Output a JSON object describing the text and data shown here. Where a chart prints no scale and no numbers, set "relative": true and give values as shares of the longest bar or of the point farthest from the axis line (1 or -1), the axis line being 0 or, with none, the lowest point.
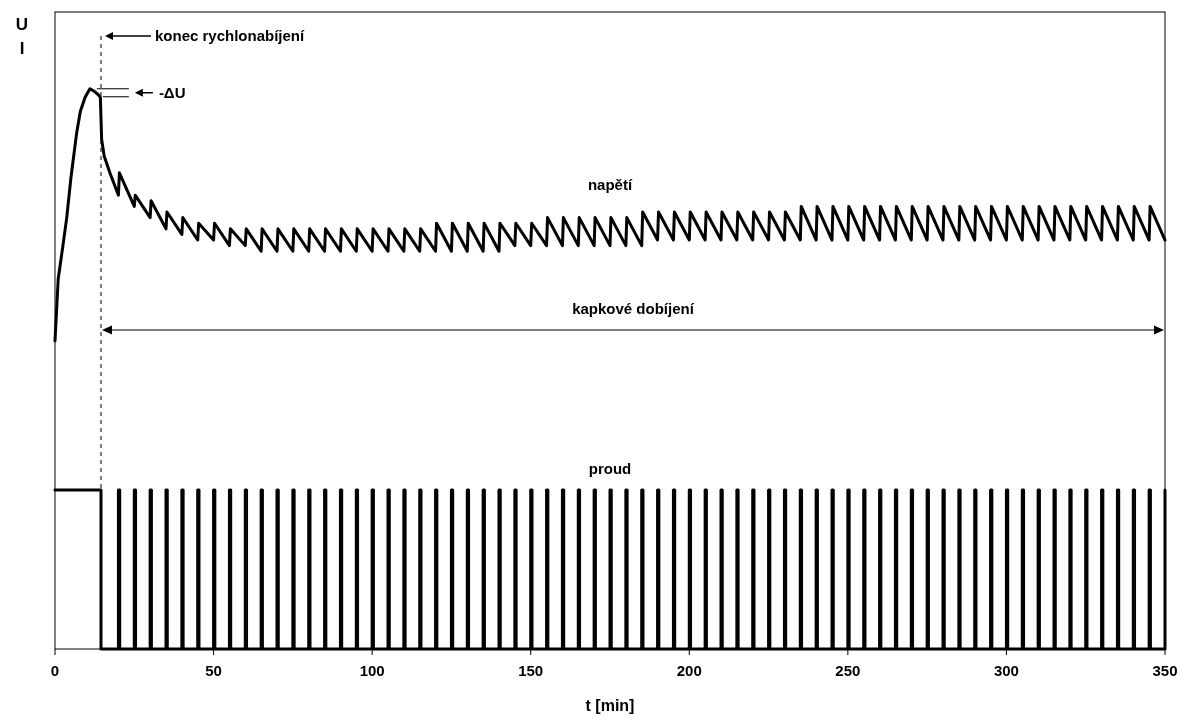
{
  "chart_data": {
    "type": "line",
    "relative": true,
    "xlabel": "t [min]",
    "ylabel": "U I",
    "xlim": [
      0,
      350
    ],
    "xticks": [
      0,
      50,
      100,
      150,
      200,
      250,
      300,
      350
    ],
    "grid": false,
    "ref_lines": [
      {
        "axis": "x",
        "value": 14.5,
        "label": "konec rychlonabíjení",
        "line_style": "dashed",
        "color": "#000000"
      }
    ],
    "annotations": [
      "-ΔU",
      "kapkové dobíjení"
    ],
    "series": [
      {
        "name": "napětí",
        "color": "#000000",
        "x": [
          0,
          1,
          2.5,
          3.7,
          5,
          6.8,
          8,
          9.5,
          11,
          12.5,
          13.5,
          14.3,
          14.7,
          15.5,
          17.3,
          20,
          20.3,
          25,
          25.3,
          30,
          30.3,
          35,
          35.3,
          40,
          40.3,
          45,
          45.3,
          50,
          50.3,
          55,
          55.3,
          60,
          60.3,
          65,
          65.3,
          70,
          70.3,
          75,
          75.3,
          80,
          80.3,
          85,
          85.3,
          90,
          90.3,
          95,
          95.3,
          100,
          100.3,
          105,
          105.3,
          110,
          110.3,
          115,
          115.3,
          120,
          120.3,
          125,
          125.3,
          130,
          130.3,
          135,
          135.3,
          140,
          140.3,
          145,
          145.3,
          150,
          150.3,
          155,
          155.3,
          160,
          160.3,
          165,
          165.3,
          170,
          170.3,
          175,
          175.3,
          180,
          180.3,
          185,
          185.3,
          190,
          190.3,
          195,
          195.3,
          200,
          200.3,
          205,
          205.3,
          210,
          210.3,
          215,
          215.3,
          220,
          220.3,
          225,
          225.3,
          230,
          230.3,
          235,
          235.3,
          240,
          240.3,
          245,
          245.3,
          250,
          250.3,
          255,
          255.3,
          260,
          260.3,
          265,
          265.3,
          270,
          270.3,
          275,
          275.3,
          280,
          280.3,
          285,
          285.3,
          290,
          290.3,
          295,
          295.3,
          300,
          300.3,
          305,
          305.3,
          310,
          310.3,
          315,
          315.3,
          320,
          320.3,
          325,
          325.3,
          330,
          330.3,
          335,
          335.3,
          340,
          340.3,
          345,
          345.3,
          350
        ],
        "values": [
          0.55,
          0.66,
          0.72,
          0.77,
          0.84,
          0.92,
          0.96,
          0.985,
          1,
          0.995,
          0.99,
          0.985,
          0.91,
          0.88,
          0.85,
          0.81,
          0.85,
          0.79,
          0.81,
          0.77,
          0.8,
          0.75,
          0.78,
          0.74,
          0.77,
          0.73,
          0.76,
          0.73,
          0.76,
          0.72,
          0.75,
          0.72,
          0.75,
          0.71,
          0.75,
          0.71,
          0.75,
          0.71,
          0.75,
          0.71,
          0.75,
          0.71,
          0.75,
          0.71,
          0.75,
          0.71,
          0.75,
          0.71,
          0.75,
          0.71,
          0.75,
          0.71,
          0.75,
          0.71,
          0.75,
          0.71,
          0.76,
          0.71,
          0.76,
          0.71,
          0.76,
          0.71,
          0.76,
          0.71,
          0.76,
          0.72,
          0.76,
          0.72,
          0.76,
          0.72,
          0.77,
          0.72,
          0.77,
          0.72,
          0.77,
          0.72,
          0.77,
          0.72,
          0.77,
          0.72,
          0.77,
          0.72,
          0.78,
          0.73,
          0.78,
          0.73,
          0.78,
          0.73,
          0.78,
          0.73,
          0.78,
          0.73,
          0.78,
          0.73,
          0.78,
          0.73,
          0.78,
          0.73,
          0.78,
          0.73,
          0.78,
          0.73,
          0.79,
          0.73,
          0.79,
          0.73,
          0.79,
          0.73,
          0.79,
          0.73,
          0.79,
          0.73,
          0.79,
          0.73,
          0.79,
          0.73,
          0.79,
          0.73,
          0.79,
          0.73,
          0.79,
          0.73,
          0.79,
          0.73,
          0.79,
          0.73,
          0.79,
          0.73,
          0.79,
          0.73,
          0.79,
          0.73,
          0.79,
          0.73,
          0.79,
          0.73,
          0.79,
          0.73,
          0.79,
          0.73,
          0.79,
          0.73,
          0.79,
          0.73,
          0.79,
          0.73,
          0.79,
          0.73
        ]
      },
      {
        "name": "proud",
        "type": "step",
        "color": "#000000",
        "x": [
          0,
          14.5,
          20,
          20.4,
          25,
          25.4,
          30,
          30.4,
          35,
          35.4,
          40,
          40.4,
          45,
          45.4,
          50,
          50.4,
          55,
          55.4,
          60,
          60.4,
          65,
          65.4,
          70,
          70.4,
          75,
          75.4,
          80,
          80.4,
          85,
          85.4,
          90,
          90.4,
          95,
          95.4,
          100,
          100.4,
          105,
          105.4,
          110,
          110.4,
          115,
          115.4,
          120,
          120.4,
          125,
          125.4,
          130,
          130.4,
          135,
          135.4,
          140,
          140.4,
          145,
          145.4,
          150,
          150.4,
          155,
          155.4,
          160,
          160.4,
          165,
          165.4,
          170,
          170.4,
          175,
          175.4,
          180,
          180.4,
          185,
          185.4,
          190,
          190.4,
          195,
          195.4,
          200,
          200.4,
          205,
          205.4,
          210,
          210.4,
          215,
          215.4,
          220,
          220.4,
          225,
          225.4,
          230,
          230.4,
          235,
          235.4,
          240,
          240.4,
          245,
          245.4,
          250,
          250.4,
          255,
          255.4,
          260,
          260.4,
          265,
          265.4,
          270,
          270.4,
          275,
          275.4,
          280,
          280.4,
          285,
          285.4,
          290,
          290.4,
          295,
          295.4,
          300,
          300.4,
          305,
          305.4,
          310,
          310.4,
          315,
          315.4,
          320,
          320.4,
          325,
          325.4,
          330,
          330.4,
          335,
          335.4,
          340,
          340.4,
          345,
          345.4,
          350
        ],
        "values": [
          0.284,
          0,
          0.284,
          0,
          0.284,
          0,
          0.284,
          0,
          0.284,
          0,
          0.284,
          0,
          0.284,
          0,
          0.284,
          0,
          0.284,
          0,
          0.284,
          0,
          0.284,
          0,
          0.284,
          0,
          0.284,
          0,
          0.284,
          0,
          0.284,
          0,
          0.284,
          0,
          0.284,
          0,
          0.284,
          0,
          0.284,
          0,
          0.284,
          0,
          0.284,
          0,
          0.284,
          0,
          0.284,
          0,
          0.284,
          0,
          0.284,
          0,
          0.284,
          0,
          0.284,
          0,
          0.284,
          0,
          0.284,
          0,
          0.284,
          0,
          0.284,
          0,
          0.284,
          0,
          0.284,
          0,
          0.284,
          0,
          0.284,
          0,
          0.284,
          0,
          0.284,
          0,
          0.284,
          0,
          0.284,
          0,
          0.284,
          0,
          0.284,
          0,
          0.284,
          0,
          0.284,
          0,
          0.284,
          0,
          0.284,
          0,
          0.284,
          0,
          0.284,
          0,
          0.284,
          0,
          0.284,
          0,
          0.284,
          0,
          0.284,
          0,
          0.284,
          0,
          0.284,
          0,
          0.284,
          0,
          0.284,
          0,
          0.284,
          0,
          0.284,
          0,
          0.284,
          0,
          0.284,
          0,
          0.284,
          0,
          0.284,
          0,
          0.284,
          0,
          0.284,
          0,
          0.284,
          0,
          0.284,
          0,
          0.284,
          0,
          0.284,
          0,
          0.284
        ]
      }
    ]
  }
}
